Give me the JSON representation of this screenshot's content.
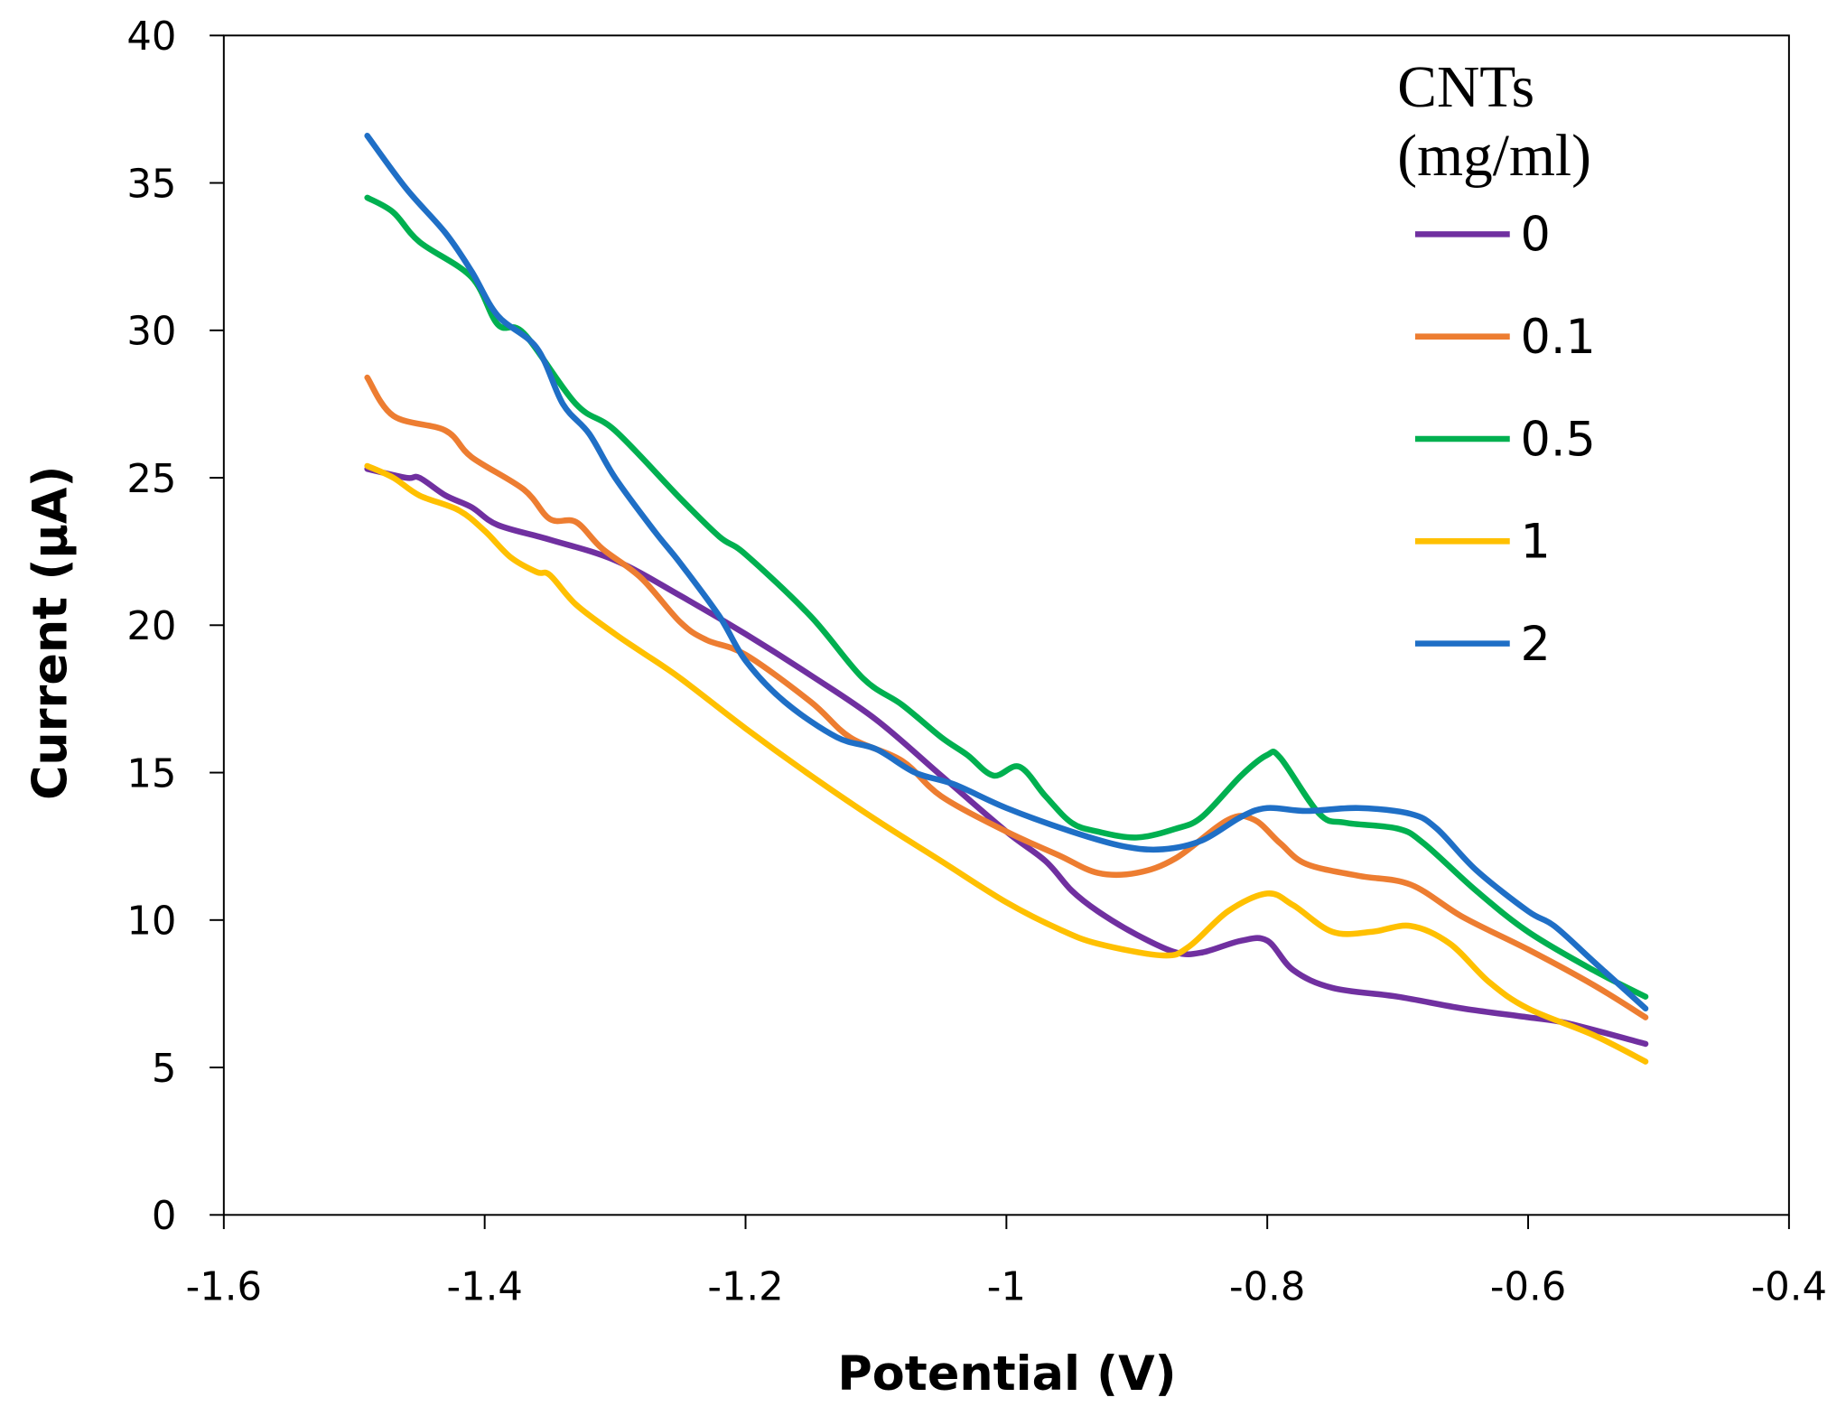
{
  "chart_data": {
    "type": "line",
    "title": "",
    "xlabel": "Potential (V)",
    "ylabel": "Current (µA)",
    "xlim": [
      -1.6,
      -0.4
    ],
    "ylim": [
      0,
      40
    ],
    "xticks": [
      -1.6,
      -1.4,
      -1.2,
      -1,
      -0.8,
      -0.6,
      -0.4
    ],
    "xtick_labels": [
      "-1.6",
      "-1.4",
      "-1.2",
      "-1",
      "-0.8",
      "-0.6",
      "-0.4"
    ],
    "yticks": [
      0,
      5,
      10,
      15,
      20,
      25,
      30,
      35,
      40
    ],
    "ytick_labels": [
      "0",
      "5",
      "10",
      "15",
      "20",
      "25",
      "30",
      "35",
      "40"
    ],
    "grid": false,
    "legend": {
      "title_line1": "CNTs",
      "title_line2": "(mg/ml)",
      "placement": "top-right"
    },
    "series": [
      {
        "name": "0",
        "color": "#7030a0",
        "points": [
          [
            -1.49,
            25.3
          ],
          [
            -1.46,
            25.0
          ],
          [
            -1.45,
            25.0
          ],
          [
            -1.43,
            24.4
          ],
          [
            -1.41,
            24.0
          ],
          [
            -1.39,
            23.4
          ],
          [
            -1.35,
            22.9
          ],
          [
            -1.3,
            22.2
          ],
          [
            -1.25,
            21.0
          ],
          [
            -1.2,
            19.7
          ],
          [
            -1.15,
            18.3
          ],
          [
            -1.1,
            16.8
          ],
          [
            -1.05,
            14.9
          ],
          [
            -1.0,
            13.0
          ],
          [
            -0.97,
            12.0
          ],
          [
            -0.95,
            11.0
          ],
          [
            -0.93,
            10.3
          ],
          [
            -0.9,
            9.5
          ],
          [
            -0.87,
            8.9
          ],
          [
            -0.85,
            8.9
          ],
          [
            -0.82,
            9.3
          ],
          [
            -0.8,
            9.3
          ],
          [
            -0.78,
            8.3
          ],
          [
            -0.75,
            7.7
          ],
          [
            -0.7,
            7.4
          ],
          [
            -0.65,
            7.0
          ],
          [
            -0.6,
            6.7
          ],
          [
            -0.57,
            6.5
          ],
          [
            -0.51,
            5.8
          ]
        ]
      },
      {
        "name": "0.1",
        "color": "#ed7d31",
        "points": [
          [
            -1.49,
            28.4
          ],
          [
            -1.47,
            27.1
          ],
          [
            -1.43,
            26.6
          ],
          [
            -1.41,
            25.7
          ],
          [
            -1.37,
            24.6
          ],
          [
            -1.35,
            23.6
          ],
          [
            -1.33,
            23.5
          ],
          [
            -1.31,
            22.6
          ],
          [
            -1.28,
            21.6
          ],
          [
            -1.25,
            20.1
          ],
          [
            -1.23,
            19.5
          ],
          [
            -1.2,
            19.0
          ],
          [
            -1.15,
            17.4
          ],
          [
            -1.12,
            16.2
          ],
          [
            -1.08,
            15.4
          ],
          [
            -1.05,
            14.2
          ],
          [
            -1.0,
            13.0
          ],
          [
            -0.96,
            12.2
          ],
          [
            -0.93,
            11.6
          ],
          [
            -0.9,
            11.6
          ],
          [
            -0.87,
            12.1
          ],
          [
            -0.83,
            13.4
          ],
          [
            -0.81,
            13.4
          ],
          [
            -0.79,
            12.6
          ],
          [
            -0.77,
            11.9
          ],
          [
            -0.73,
            11.5
          ],
          [
            -0.69,
            11.2
          ],
          [
            -0.65,
            10.1
          ],
          [
            -0.6,
            9.0
          ],
          [
            -0.55,
            7.8
          ],
          [
            -0.51,
            6.7
          ]
        ]
      },
      {
        "name": "0.5",
        "color": "#00b050",
        "points": [
          [
            -1.49,
            34.5
          ],
          [
            -1.47,
            34.0
          ],
          [
            -1.45,
            33.0
          ],
          [
            -1.41,
            31.8
          ],
          [
            -1.39,
            30.2
          ],
          [
            -1.37,
            29.9
          ],
          [
            -1.33,
            27.5
          ],
          [
            -1.3,
            26.6
          ],
          [
            -1.25,
            24.3
          ],
          [
            -1.22,
            23.0
          ],
          [
            -1.2,
            22.4
          ],
          [
            -1.15,
            20.3
          ],
          [
            -1.11,
            18.2
          ],
          [
            -1.08,
            17.3
          ],
          [
            -1.05,
            16.2
          ],
          [
            -1.03,
            15.6
          ],
          [
            -1.01,
            14.9
          ],
          [
            -0.99,
            15.2
          ],
          [
            -0.97,
            14.2
          ],
          [
            -0.95,
            13.3
          ],
          [
            -0.93,
            13.0
          ],
          [
            -0.9,
            12.8
          ],
          [
            -0.87,
            13.1
          ],
          [
            -0.85,
            13.5
          ],
          [
            -0.82,
            14.9
          ],
          [
            -0.8,
            15.6
          ],
          [
            -0.79,
            15.5
          ],
          [
            -0.76,
            13.6
          ],
          [
            -0.74,
            13.3
          ],
          [
            -0.7,
            13.1
          ],
          [
            -0.68,
            12.6
          ],
          [
            -0.64,
            11.0
          ],
          [
            -0.6,
            9.6
          ],
          [
            -0.55,
            8.3
          ],
          [
            -0.51,
            7.4
          ]
        ]
      },
      {
        "name": "1",
        "color": "#ffc000",
        "points": [
          [
            -1.49,
            25.4
          ],
          [
            -1.47,
            25.0
          ],
          [
            -1.45,
            24.4
          ],
          [
            -1.42,
            23.9
          ],
          [
            -1.4,
            23.2
          ],
          [
            -1.38,
            22.3
          ],
          [
            -1.36,
            21.8
          ],
          [
            -1.35,
            21.7
          ],
          [
            -1.33,
            20.7
          ],
          [
            -1.3,
            19.7
          ],
          [
            -1.28,
            19.1
          ],
          [
            -1.25,
            18.2
          ],
          [
            -1.2,
            16.5
          ],
          [
            -1.15,
            14.9
          ],
          [
            -1.1,
            13.4
          ],
          [
            -1.05,
            12.0
          ],
          [
            -1.0,
            10.6
          ],
          [
            -0.96,
            9.7
          ],
          [
            -0.93,
            9.2
          ],
          [
            -0.88,
            8.8
          ],
          [
            -0.86,
            9.1
          ],
          [
            -0.83,
            10.3
          ],
          [
            -0.8,
            10.9
          ],
          [
            -0.78,
            10.5
          ],
          [
            -0.75,
            9.6
          ],
          [
            -0.72,
            9.6
          ],
          [
            -0.69,
            9.8
          ],
          [
            -0.66,
            9.2
          ],
          [
            -0.63,
            7.9
          ],
          [
            -0.6,
            7.0
          ],
          [
            -0.55,
            6.1
          ],
          [
            -0.51,
            5.2
          ]
        ]
      },
      {
        "name": "2",
        "color": "#1f6fc6",
        "points": [
          [
            -1.49,
            36.6
          ],
          [
            -1.46,
            34.8
          ],
          [
            -1.43,
            33.3
          ],
          [
            -1.41,
            32.0
          ],
          [
            -1.39,
            30.5
          ],
          [
            -1.36,
            29.4
          ],
          [
            -1.34,
            27.5
          ],
          [
            -1.32,
            26.5
          ],
          [
            -1.3,
            25.0
          ],
          [
            -1.27,
            23.2
          ],
          [
            -1.25,
            22.1
          ],
          [
            -1.22,
            20.3
          ],
          [
            -1.2,
            18.8
          ],
          [
            -1.17,
            17.4
          ],
          [
            -1.13,
            16.2
          ],
          [
            -1.1,
            15.8
          ],
          [
            -1.07,
            15.0
          ],
          [
            -1.04,
            14.6
          ],
          [
            -1.0,
            13.8
          ],
          [
            -0.95,
            13.0
          ],
          [
            -0.91,
            12.5
          ],
          [
            -0.88,
            12.4
          ],
          [
            -0.85,
            12.7
          ],
          [
            -0.82,
            13.5
          ],
          [
            -0.8,
            13.8
          ],
          [
            -0.77,
            13.7
          ],
          [
            -0.73,
            13.8
          ],
          [
            -0.69,
            13.6
          ],
          [
            -0.67,
            13.1
          ],
          [
            -0.64,
            11.7
          ],
          [
            -0.6,
            10.3
          ],
          [
            -0.58,
            9.8
          ],
          [
            -0.55,
            8.6
          ],
          [
            -0.51,
            7.0
          ]
        ]
      }
    ]
  }
}
